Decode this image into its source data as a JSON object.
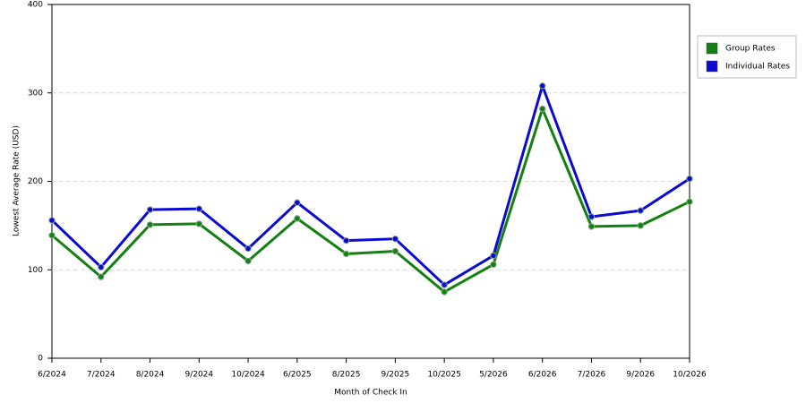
{
  "chart_data": {
    "type": "line",
    "x_label": "Month of Check In",
    "y_label": "Lowest Average Rate (USD)",
    "categories": [
      "6/2024",
      "7/2024",
      "8/2024",
      "9/2024",
      "10/2024",
      "6/2025",
      "8/2025",
      "9/2025",
      "10/2025",
      "5/2026",
      "6/2026",
      "7/2026",
      "9/2026",
      "10/2026"
    ],
    "series": [
      {
        "name": "Group Rates",
        "color": "#138013",
        "values": [
          139,
          92,
          151,
          152,
          110,
          158,
          118,
          121,
          75,
          106,
          282,
          149,
          150,
          177
        ]
      },
      {
        "name": "Individual Rates",
        "color": "#0a0ad2",
        "values": [
          156,
          103,
          168,
          169,
          124,
          176,
          133,
          135,
          83,
          116,
          308,
          160,
          167,
          203
        ]
      }
    ],
    "ylim": [
      0,
      400
    ],
    "yticks": [
      0,
      100,
      200,
      300,
      400
    ],
    "grid": true,
    "legend": "right"
  }
}
